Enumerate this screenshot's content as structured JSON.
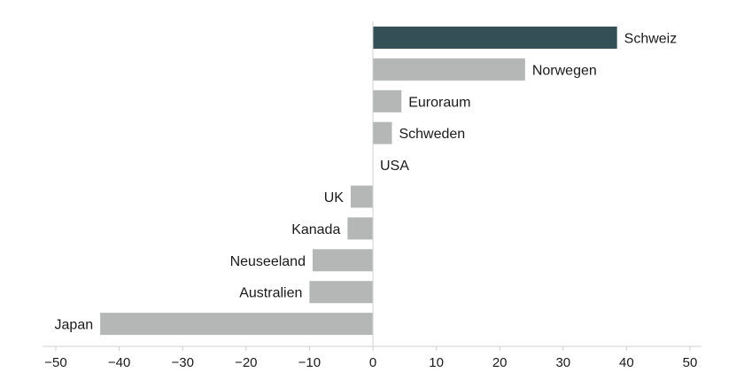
{
  "chart_data": {
    "type": "bar",
    "orientation": "horizontal",
    "categories": [
      "Schweiz",
      "Norwegen",
      "Euroraum",
      "Schweden",
      "USA",
      "UK",
      "Kanada",
      "Neuseeland",
      "Australien",
      "Japan"
    ],
    "values": [
      38.5,
      24,
      4.5,
      3,
      0,
      -3.5,
      -4,
      -9.5,
      -10,
      -43
    ],
    "highlight_category": "Schweiz",
    "colors": {
      "highlight": "#344f55",
      "default": "#b4b7b6"
    },
    "xlim": [
      -50,
      50
    ],
    "xticks": [
      -50,
      -40,
      -30,
      -20,
      -10,
      0,
      10,
      20,
      30,
      40,
      50
    ],
    "xtick_labels": [
      "−50",
      "−40",
      "−30",
      "−20",
      "−10",
      "0",
      "10",
      "20",
      "30",
      "40",
      "50"
    ],
    "grid": false,
    "legend": "none"
  }
}
